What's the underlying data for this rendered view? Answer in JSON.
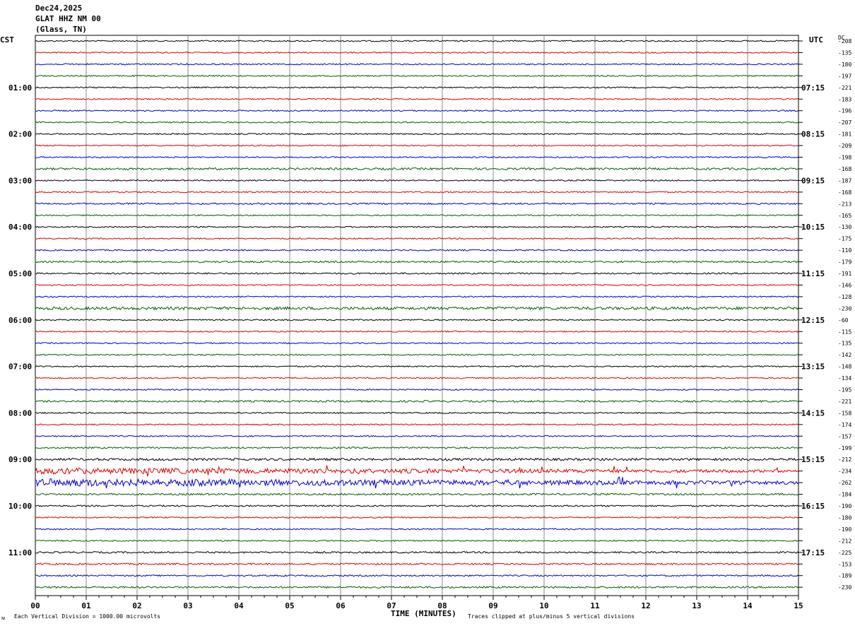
{
  "header": {
    "date": "Dec24,2025",
    "station": "GLAT HHZ NM 00",
    "location": "(Glass, TN)"
  },
  "axis": {
    "left_tz": "CST",
    "right_tz": "UTC",
    "dc_label": "DC",
    "xlabel": "TIME (MINUTES)",
    "footer_left": "Each Vertical Division = 1000.00 microvolts",
    "footer_right": "Traces clipped at plus/minus 5 vertical divisions",
    "corner_mark": "ᴍ"
  },
  "chart_data": {
    "type": "line",
    "title": "",
    "xlabel": "TIME (MINUTES)",
    "ylabel": "",
    "x_range": [
      0,
      15
    ],
    "x_ticks": [
      "00",
      "01",
      "02",
      "03",
      "04",
      "05",
      "06",
      "07",
      "08",
      "09",
      "10",
      "11",
      "12",
      "13",
      "14",
      "15"
    ],
    "grid": true,
    "trace_colors": [
      "#000000",
      "#e00000",
      "#0000d0",
      "#006000"
    ],
    "left_hour_labels": [
      "01:00",
      "02:00",
      "03:00",
      "04:00",
      "05:00",
      "06:00",
      "07:00",
      "08:00",
      "09:00",
      "10:00",
      "11:00"
    ],
    "right_hour_labels": [
      "07:15",
      "08:15",
      "09:15",
      "10:15",
      "11:15",
      "12:15",
      "13:15",
      "14:15",
      "15:15",
      "16:15",
      "17:15"
    ],
    "dc_offsets": [
      "-208",
      "-135",
      "-180",
      "-197",
      "-221",
      "-183",
      "-196",
      "-207",
      "-181",
      "-209",
      "-198",
      "-168",
      "-187",
      "-168",
      "-213",
      "-165",
      "-130",
      "-175",
      "-110",
      "-179",
      "-191",
      "-146",
      "-128",
      "-230",
      "-60",
      "-115",
      "-135",
      "-142",
      "-148",
      "-134",
      "-195",
      "-221",
      "-158",
      "-174",
      "-157",
      "-199",
      "-212",
      "-234",
      "-262",
      "-184",
      "-190",
      "-180",
      "-190",
      "-212",
      "-225",
      "-153",
      "-189",
      "-230"
    ],
    "trace_activity": [
      1,
      1,
      1,
      1,
      1,
      1,
      1,
      1,
      1,
      1,
      1,
      1.6,
      1,
      1,
      1.2,
      1,
      1,
      1,
      1.1,
      1.3,
      1.2,
      1,
      1,
      2.2,
      1,
      1,
      1,
      1,
      1,
      1,
      1,
      1.4,
      1,
      1,
      1,
      1.2,
      1.8,
      4,
      5,
      1.4,
      1.2,
      1,
      1,
      1,
      1.3,
      1.3,
      1.1,
      1.4
    ]
  }
}
